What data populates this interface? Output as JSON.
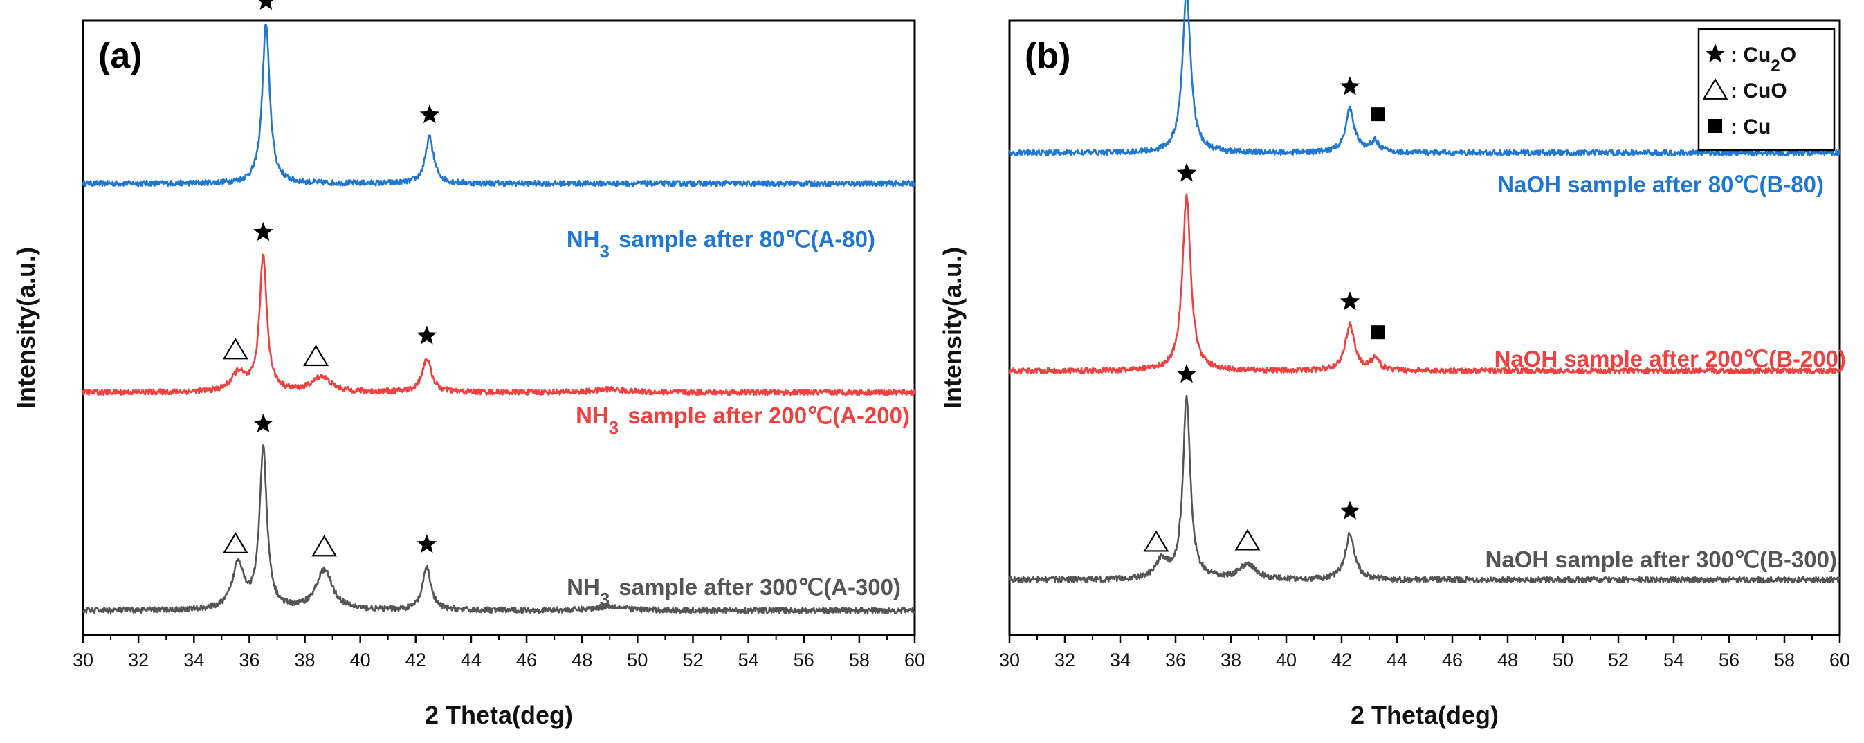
{
  "chart_data": [
    {
      "type": "line",
      "panel_label": "(a)",
      "xlabel": "2 Theta(deg)",
      "ylabel": "Intensity(a.u.)",
      "xlim": [
        30,
        60
      ],
      "ylim": [
        0,
        10
      ],
      "xticks": [
        "30",
        "32",
        "34",
        "36",
        "38",
        "40",
        "42",
        "44",
        "46",
        "48",
        "50",
        "52",
        "54",
        "56",
        "58",
        "60"
      ],
      "grid": false,
      "series": [
        {
          "name": "A-80",
          "label": "NH₃ sample after 80℃(A-80)",
          "color": "#1f77d4",
          "baseline": 7.35,
          "peaks": [
            {
              "x": 36.6,
              "h": 2.6,
              "w": 0.16
            },
            {
              "x": 42.5,
              "h": 0.75,
              "w": 0.18
            }
          ],
          "markers": [
            {
              "x": 36.6,
              "symbol": "star"
            },
            {
              "x": 42.5,
              "symbol": "star"
            }
          ]
        },
        {
          "name": "A-200",
          "label": "NH₃ sample after 200℃(A-200)",
          "color": "#f04040",
          "baseline": 3.95,
          "peaks": [
            {
              "x": 35.6,
              "h": 0.3,
              "w": 0.3
            },
            {
              "x": 36.5,
              "h": 2.2,
              "w": 0.16
            },
            {
              "x": 38.6,
              "h": 0.25,
              "w": 0.4
            },
            {
              "x": 42.4,
              "h": 0.55,
              "w": 0.2
            },
            {
              "x": 49.0,
              "h": 0.05,
              "w": 0.6
            }
          ],
          "markers": [
            {
              "x": 35.5,
              "symbol": "triangle"
            },
            {
              "x": 36.5,
              "symbol": "star"
            },
            {
              "x": 38.4,
              "symbol": "triangle"
            },
            {
              "x": 42.4,
              "symbol": "star"
            }
          ]
        },
        {
          "name": "A-300",
          "label": "NH₃ sample after 300℃(A-300)",
          "color": "#555555",
          "baseline": 0.4,
          "peaks": [
            {
              "x": 35.6,
              "h": 0.75,
              "w": 0.25
            },
            {
              "x": 36.5,
              "h": 2.6,
              "w": 0.16
            },
            {
              "x": 38.7,
              "h": 0.65,
              "w": 0.35
            },
            {
              "x": 42.4,
              "h": 0.7,
              "w": 0.18
            },
            {
              "x": 49.0,
              "h": 0.07,
              "w": 0.6
            }
          ],
          "markers": [
            {
              "x": 35.5,
              "symbol": "triangle"
            },
            {
              "x": 36.5,
              "symbol": "star"
            },
            {
              "x": 38.7,
              "symbol": "triangle"
            },
            {
              "x": 42.4,
              "symbol": "star"
            }
          ]
        }
      ]
    },
    {
      "type": "line",
      "panel_label": "(b)",
      "xlabel": "2 Theta(deg)",
      "ylabel": "Intensity(a.u.)",
      "xlim": [
        30,
        60
      ],
      "ylim": [
        0,
        10
      ],
      "xticks": [
        "30",
        "32",
        "34",
        "36",
        "38",
        "40",
        "42",
        "44",
        "46",
        "48",
        "50",
        "52",
        "54",
        "56",
        "58",
        "60"
      ],
      "grid": false,
      "series": [
        {
          "name": "B-80",
          "label": "NaOH sample after 80℃(B-80)",
          "color": "#1f77d4",
          "baseline": 7.85,
          "peaks": [
            {
              "x": 36.4,
              "h": 2.6,
              "w": 0.18
            },
            {
              "x": 42.3,
              "h": 0.7,
              "w": 0.2
            },
            {
              "x": 43.2,
              "h": 0.18,
              "w": 0.2
            }
          ],
          "markers": [
            {
              "x": 36.4,
              "symbol": "star"
            },
            {
              "x": 42.3,
              "symbol": "star"
            },
            {
              "x": 43.3,
              "symbol": "square"
            }
          ]
        },
        {
          "name": "B-200",
          "label": "NaOH sample after 200℃(B-200)",
          "color": "#f04040",
          "baseline": 4.3,
          "peaks": [
            {
              "x": 36.4,
              "h": 2.85,
              "w": 0.18
            },
            {
              "x": 42.3,
              "h": 0.75,
              "w": 0.2
            },
            {
              "x": 43.2,
              "h": 0.18,
              "w": 0.2
            }
          ],
          "markers": [
            {
              "x": 36.4,
              "symbol": "star"
            },
            {
              "x": 42.3,
              "symbol": "star"
            },
            {
              "x": 43.3,
              "symbol": "square"
            }
          ]
        },
        {
          "name": "B-300",
          "label": "NaOH sample after 300℃(B-300)",
          "color": "#555555",
          "baseline": 0.9,
          "peaks": [
            {
              "x": 35.5,
              "h": 0.3,
              "w": 0.25
            },
            {
              "x": 36.4,
              "h": 2.95,
              "w": 0.16
            },
            {
              "x": 38.6,
              "h": 0.25,
              "w": 0.35
            },
            {
              "x": 42.3,
              "h": 0.75,
              "w": 0.2
            }
          ],
          "markers": [
            {
              "x": 35.3,
              "symbol": "triangle"
            },
            {
              "x": 36.4,
              "symbol": "star"
            },
            {
              "x": 38.6,
              "symbol": "triangle"
            },
            {
              "x": 42.3,
              "symbol": "star"
            }
          ]
        }
      ],
      "legend": {
        "placement": "top-right",
        "entries": [
          {
            "symbol": "star",
            "text": ": Cu₂O"
          },
          {
            "symbol": "triangle",
            "text": ": CuO"
          },
          {
            "symbol": "square",
            "text": ": Cu"
          }
        ]
      }
    }
  ]
}
